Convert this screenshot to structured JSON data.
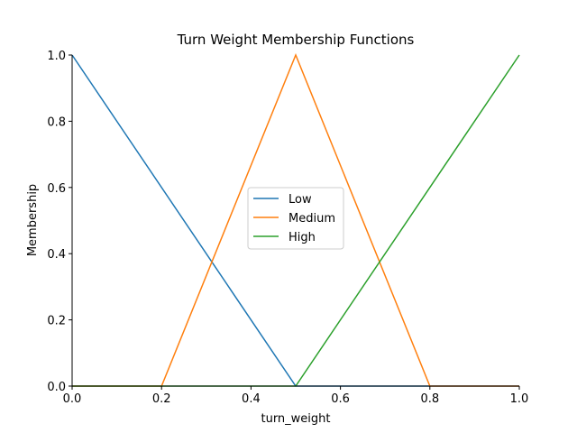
{
  "chart_data": {
    "type": "line",
    "title": "Turn Weight Membership Functions",
    "xlabel": "turn_weight",
    "ylabel": "Membership",
    "xlim": [
      0,
      1
    ],
    "ylim": [
      0,
      1
    ],
    "x_ticks": [
      "0.0",
      "0.2",
      "0.4",
      "0.6",
      "0.8",
      "1.0"
    ],
    "y_ticks": [
      "0.0",
      "0.2",
      "0.4",
      "0.6",
      "0.8",
      "1.0"
    ],
    "grid": false,
    "legend_position": "center",
    "series": [
      {
        "name": "Low",
        "color": "#1f77b4",
        "points": [
          [
            0,
            1
          ],
          [
            0.5,
            0
          ],
          [
            1,
            0
          ]
        ]
      },
      {
        "name": "Medium",
        "color": "#ff7f0e",
        "points": [
          [
            0,
            0
          ],
          [
            0.2,
            0
          ],
          [
            0.5,
            1
          ],
          [
            0.8,
            0
          ],
          [
            1,
            0
          ]
        ]
      },
      {
        "name": "High",
        "color": "#2ca02c",
        "points": [
          [
            0,
            0
          ],
          [
            0.5,
            0
          ],
          [
            1,
            1
          ]
        ]
      }
    ]
  }
}
